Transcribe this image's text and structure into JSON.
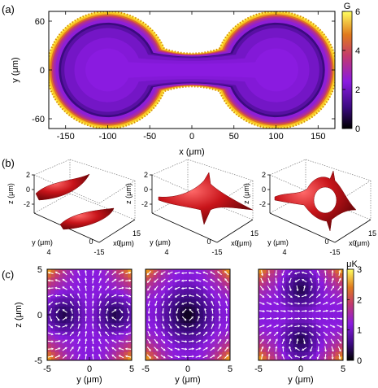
{
  "colors": {
    "heat_stops": [
      "#000000",
      "#3b0a80",
      "#8a1be0",
      "#c33a6e",
      "#e07a1e",
      "#ffd21f",
      "#ffff60"
    ],
    "surface_red": "#c8141a",
    "surface_highlight": "#ff6a6a",
    "arrow_white": "#ffffff",
    "rim_dot_orange": "#d98a10"
  },
  "panels": {
    "a": {
      "label": "(a)"
    },
    "b": {
      "label": "(b)"
    },
    "c": {
      "label": "(c)"
    }
  },
  "chart_data": [
    {
      "panel": "(a)",
      "type": "heatmap",
      "description_shape": "double-well (dumbbell) trap potential",
      "xlabel": "x (μm)",
      "ylabel": "y (μm)",
      "xticks": [
        -150,
        -100,
        -50,
        0,
        50,
        100,
        150
      ],
      "yticks": [
        -60,
        0,
        60
      ],
      "xlim": [
        -170,
        170
      ],
      "ylim": [
        -72,
        72
      ],
      "colorbar": {
        "label": "G",
        "ticks": [
          0,
          2,
          4,
          6
        ],
        "range": [
          0,
          6
        ]
      },
      "well_centers_x": [
        -100,
        100
      ],
      "well_radius": 66,
      "neck_halfwidth": 24
    },
    {
      "panel": "(b)",
      "type": "surface3d",
      "count": 3,
      "axes": {
        "z_label": "z (μm)",
        "y_label": "y (μm)",
        "x_label": "x (μm)",
        "z_ticks": [
          "2",
          "0",
          "-2"
        ],
        "y_ticks": [
          "4",
          "0"
        ],
        "x_ticks": [
          "15",
          "0",
          "-15"
        ]
      },
      "variants": [
        "two separated tori",
        "connected cross-shaped surface",
        "ring-shaped surface with lobes"
      ]
    },
    {
      "panel": "(c)",
      "type": "heatmap",
      "count": 3,
      "xlabel": "y (μm)",
      "ylabel": "z (μm)",
      "xticks": [
        -5,
        0,
        5
      ],
      "yticks": [
        -5,
        0,
        5
      ],
      "xlim": [
        -5,
        5
      ],
      "ylim": [
        -5,
        5
      ],
      "colorbar": {
        "label": "μK",
        "ticks": [
          0,
          1,
          2,
          3
        ],
        "range": [
          0,
          3
        ]
      },
      "vortex_field": "white arrows",
      "minima": [
        [
          [
            -3,
            0
          ],
          [
            3,
            0
          ]
        ],
        [
          [
            0,
            0
          ]
        ],
        [
          [
            0,
            2.8
          ],
          [
            0,
            -2.8
          ]
        ]
      ]
    }
  ]
}
